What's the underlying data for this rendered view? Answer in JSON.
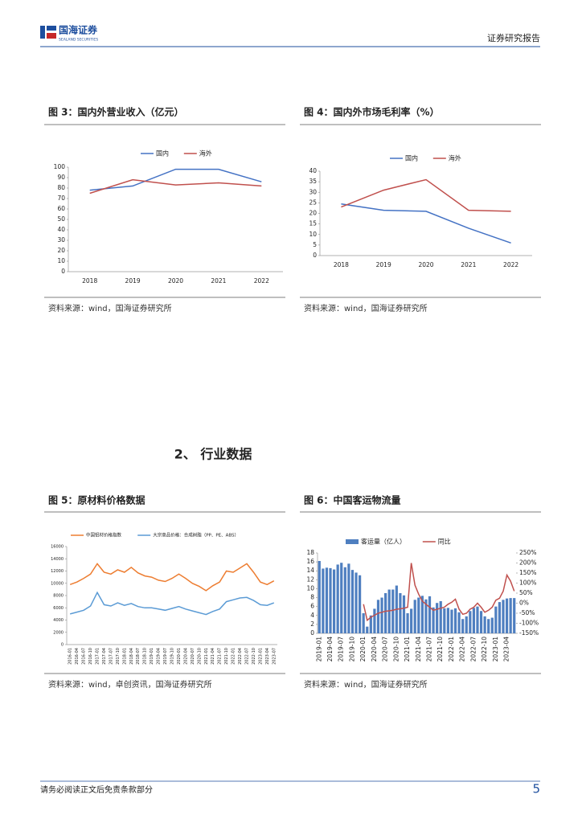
{
  "header": {
    "logo": "国海证券",
    "logo_sub": "SEALAND SECURITIES",
    "report": "证券研究报告"
  },
  "section": "2、 行业数据",
  "footer": {
    "disclaimer": "请务必阅读正文后免责条款部分",
    "page": 5
  },
  "chart_data": [
    {
      "type": "line",
      "title": "图 3：国内外营业收入（亿元）",
      "source": "资料来源：wind，国海证券研究所",
      "categories": [
        "2018",
        "2019",
        "2020",
        "2021",
        "2022"
      ],
      "series": [
        {
          "name": "国内",
          "color": "#4472c4",
          "values": [
            78,
            82,
            98,
            98,
            86
          ]
        },
        {
          "name": "海外",
          "color": "#c0504d",
          "values": [
            75,
            88,
            83,
            85,
            82
          ]
        }
      ],
      "ylim": [
        0,
        100
      ],
      "yticks": [
        0,
        10,
        20,
        30,
        40,
        50,
        60,
        70,
        80,
        90,
        100
      ]
    },
    {
      "type": "line",
      "title": "图 4：国内外市场毛利率（%）",
      "source": "资料来源：wind，国海证券研究所",
      "categories": [
        "2018",
        "2019",
        "2020",
        "2021",
        "2022"
      ],
      "series": [
        {
          "name": "国内",
          "color": "#4472c4",
          "values": [
            24.5,
            21.5,
            21,
            13,
            6
          ]
        },
        {
          "name": "海外",
          "color": "#c0504d",
          "values": [
            23,
            31,
            36,
            21.5,
            21
          ]
        }
      ],
      "ylim": [
        0,
        40
      ],
      "yticks": [
        0,
        5,
        10,
        15,
        20,
        25,
        30,
        35,
        40
      ]
    },
    {
      "type": "line",
      "title": "图 5：原材料价格数据",
      "source": "资料来源：wind，卓创资讯，国海证券研究所",
      "categories": [
        "2016-01",
        "2016-04",
        "2016-07",
        "2016-10",
        "2017-01",
        "2017-04",
        "2017-07",
        "2017-10",
        "2018-01",
        "2018-04",
        "2018-07",
        "2018-10",
        "2019-01",
        "2019-04",
        "2019-07",
        "2019-10",
        "2020-01",
        "2020-04",
        "2020-07",
        "2020-10",
        "2021-01",
        "2021-04",
        "2021-07",
        "2021-10",
        "2022-01",
        "2022-04",
        "2022-07",
        "2022-10",
        "2023-01",
        "2023-04",
        "2023-07"
      ],
      "series": [
        {
          "name": "中国铝材价格指数",
          "color": "#ed7d31",
          "values": [
            9800,
            10200,
            10800,
            11500,
            13200,
            11800,
            11500,
            12200,
            11800,
            12600,
            11700,
            11200,
            11000,
            10500,
            10300,
            10800,
            11500,
            10800,
            10000,
            9500,
            8800,
            9600,
            10200,
            12000,
            11800,
            12500,
            13200,
            11800,
            10200,
            9800,
            10400
          ]
        },
        {
          "name": "大宗商品价格：合成树脂（PP、PE、ABS）",
          "color": "#5b9bd5",
          "values": [
            5000,
            5300,
            5600,
            6300,
            8500,
            6500,
            6300,
            6800,
            6400,
            6700,
            6200,
            6000,
            6000,
            5800,
            5600,
            5900,
            6200,
            5800,
            5500,
            5200,
            4900,
            5400,
            5800,
            7000,
            7300,
            7600,
            7700,
            7200,
            6500,
            6400,
            6800
          ]
        }
      ],
      "ylim": [
        0,
        16000
      ],
      "yticks": [
        0,
        2000,
        4000,
        6000,
        8000,
        10000,
        12000,
        14000,
        16000
      ]
    },
    {
      "type": "combo",
      "title": "图 6：中国客运物流量",
      "source": "资料来源：wind，国海证券研究所",
      "categories": [
        "2019-01",
        null,
        null,
        "2019-04",
        null,
        null,
        "2019-07",
        null,
        null,
        "2019-10",
        null,
        null,
        "2020-01",
        null,
        null,
        "2020-04",
        null,
        null,
        "2020-07",
        null,
        null,
        "2020-10",
        null,
        null,
        "2021-01",
        null,
        null,
        "2021-04",
        null,
        null,
        "2021-07",
        null,
        null,
        "2021-10",
        null,
        null,
        "2022-01",
        null,
        null,
        "2022-04",
        null,
        null,
        "2022-07",
        null,
        null,
        "2022-10",
        null,
        null,
        "2023-01",
        null,
        null,
        "2023-04",
        null,
        null
      ],
      "series": [
        {
          "name": "客运量（亿人）",
          "color": "#4f7fc0",
          "values": [
            16.2,
            14.5,
            14.7,
            14.6,
            14.3,
            15.4,
            15.8,
            14.8,
            15.6,
            14.2,
            13.6,
            13.0,
            4.5,
            1.5,
            4.0,
            5.5,
            7.5,
            8.0,
            9.0,
            9.8,
            9.8,
            10.7,
            9.0,
            8.5,
            4.5,
            5.5,
            7.5,
            8.0,
            8.4,
            7.6,
            8.3,
            5.8,
            6.8,
            7.2,
            5.6,
            5.7,
            5.3,
            5.6,
            4.7,
            3.2,
            3.8,
            5.0,
            5.7,
            6.0,
            5.0,
            3.8,
            3.2,
            3.5,
            6.0,
            7.0,
            7.5,
            7.8,
            7.9,
            7.9
          ]
        },
        {
          "name": "同比",
          "color": "#c0504d",
          "axis": "y2",
          "values": [
            null,
            null,
            null,
            null,
            null,
            null,
            null,
            null,
            null,
            null,
            null,
            null,
            -5,
            -85,
            -70,
            -60,
            -50,
            -45,
            -40,
            -38,
            -35,
            -30,
            -28,
            -25,
            -20,
            200,
            90,
            45,
            10,
            -5,
            -20,
            -35,
            -30,
            -25,
            -20,
            -5,
            5,
            20,
            -30,
            -55,
            -50,
            -30,
            -20,
            0,
            -20,
            -45,
            -35,
            -20,
            15,
            25,
            60,
            140,
            110,
            60
          ]
        }
      ],
      "ylim": [
        0,
        18
      ],
      "yticks": [
        0,
        2,
        4,
        6,
        8,
        10,
        12,
        14,
        16,
        18
      ],
      "y2lim": [
        -150,
        250
      ],
      "y2ticks": [
        {
          "value": -150,
          "label": "-150%"
        },
        {
          "value": -100,
          "label": "-100%"
        },
        {
          "value": -50,
          "label": "-50%"
        },
        {
          "value": 0,
          "label": "0%"
        },
        {
          "value": 50,
          "label": "50%"
        },
        {
          "value": 100,
          "label": "100%"
        },
        {
          "value": 150,
          "label": "150%"
        },
        {
          "value": 200,
          "label": "200%"
        },
        {
          "value": 250,
          "label": "250%"
        }
      ]
    }
  ]
}
